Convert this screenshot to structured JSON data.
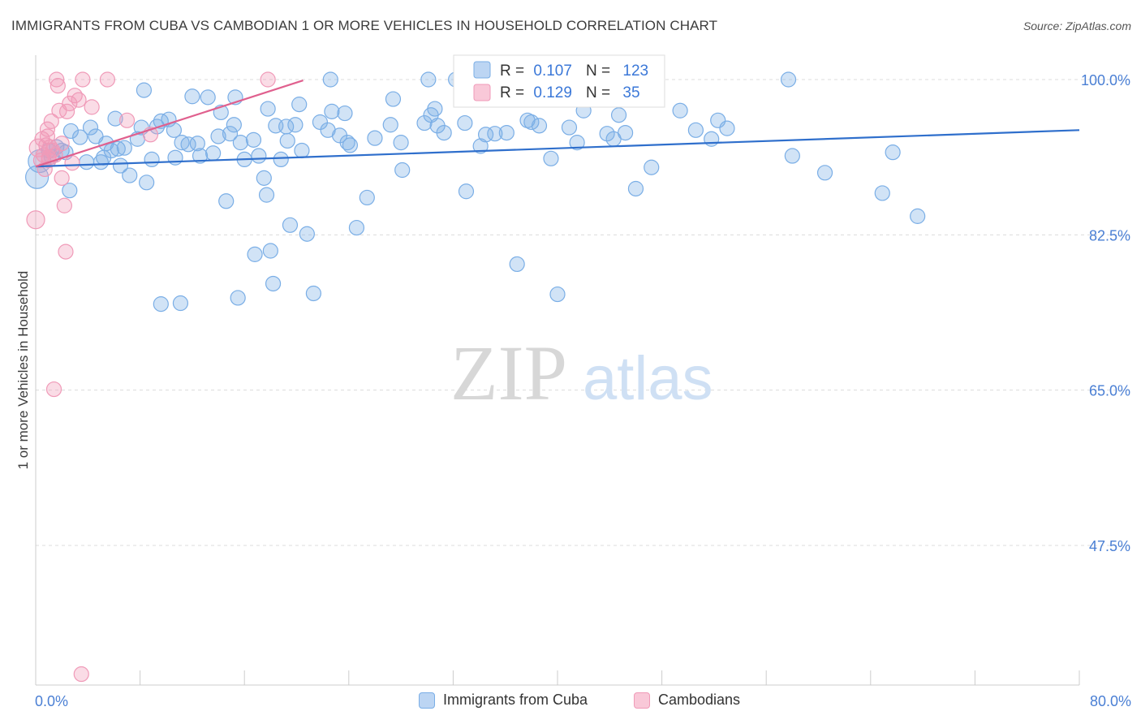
{
  "title": "IMMIGRANTS FROM CUBA VS CAMBODIAN 1 OR MORE VEHICLES IN HOUSEHOLD CORRELATION CHART",
  "source": "Source: ZipAtlas.com",
  "watermark": {
    "zip": "ZIP",
    "atlas": "atlas"
  },
  "legend_box": {
    "rows": [
      {
        "r_label": "R =",
        "r_value": "0.107",
        "n_label": "N =",
        "n_value": "123"
      },
      {
        "r_label": "R =",
        "r_value": "0.129",
        "n_label": "N =",
        "n_value": "35"
      }
    ]
  },
  "chart_data": {
    "type": "scatter",
    "title": "IMMIGRANTS FROM CUBA VS CAMBODIAN 1 OR MORE VEHICLES IN HOUSEHOLD CORRELATION CHART",
    "xlabel": "",
    "ylabel": "1 or more Vehicles in Household",
    "xlim": [
      0,
      80
    ],
    "ylim": [
      30,
      102
    ],
    "x_tick_labels": [
      "0.0%",
      "80.0%"
    ],
    "y_ticks": [
      47.5,
      65.0,
      82.5,
      100.0
    ],
    "y_tick_labels": [
      "47.5%",
      "65.0%",
      "82.5%",
      "100.0%"
    ],
    "grid": "horizontal dashed",
    "legend_position": "bottom",
    "colors": {
      "cuba": "#7aaee6",
      "cambodian": "#f09ab8",
      "cuba_line": "#2f6fcc",
      "cambodian_line": "#e0608e",
      "axis_text": "#4a7fd4"
    },
    "series": [
      {
        "name": "Immigrants from Cuba",
        "r": 0.107,
        "n": 123,
        "trend": [
          [
            0,
            90.2
          ],
          [
            80,
            94.3
          ]
        ],
        "points": [
          [
            0.1,
            89.0
          ],
          [
            0.3,
            90.8
          ],
          [
            1.0,
            92.0
          ],
          [
            1.2,
            91.3
          ],
          [
            1.6,
            92.4
          ],
          [
            2.0,
            92.0
          ],
          [
            2.3,
            91.8
          ],
          [
            2.6,
            87.5
          ],
          [
            2.7,
            94.2
          ],
          [
            3.4,
            93.5
          ],
          [
            3.9,
            90.7
          ],
          [
            4.2,
            94.6
          ],
          [
            4.6,
            93.6
          ],
          [
            5.0,
            90.7
          ],
          [
            5.2,
            91.2
          ],
          [
            5.4,
            92.8
          ],
          [
            5.8,
            92.0
          ],
          [
            6.1,
            95.6
          ],
          [
            6.3,
            92.2
          ],
          [
            6.5,
            90.3
          ],
          [
            6.8,
            92.3
          ],
          [
            7.2,
            89.2
          ],
          [
            7.8,
            93.3
          ],
          [
            8.1,
            94.6
          ],
          [
            8.3,
            98.8
          ],
          [
            8.5,
            88.4
          ],
          [
            8.9,
            91.0
          ],
          [
            9.3,
            94.7
          ],
          [
            9.6,
            95.3
          ],
          [
            10.2,
            95.5
          ],
          [
            10.6,
            94.3
          ],
          [
            10.7,
            91.2
          ],
          [
            11.2,
            92.9
          ],
          [
            11.7,
            92.7
          ],
          [
            12.0,
            98.1
          ],
          [
            12.4,
            92.8
          ],
          [
            12.6,
            91.4
          ],
          [
            13.2,
            98.0
          ],
          [
            13.6,
            91.7
          ],
          [
            14.0,
            93.6
          ],
          [
            14.2,
            96.3
          ],
          [
            14.9,
            93.9
          ],
          [
            15.2,
            94.9
          ],
          [
            15.3,
            98.0
          ],
          [
            15.7,
            92.9
          ],
          [
            16.0,
            91.0
          ],
          [
            16.7,
            93.2
          ],
          [
            17.1,
            91.4
          ],
          [
            17.5,
            88.9
          ],
          [
            17.8,
            96.7
          ],
          [
            18.4,
            94.8
          ],
          [
            18.8,
            91.0
          ],
          [
            19.2,
            94.7
          ],
          [
            19.3,
            93.1
          ],
          [
            19.9,
            94.9
          ],
          [
            20.2,
            97.2
          ],
          [
            20.4,
            92.0
          ],
          [
            21.8,
            95.2
          ],
          [
            22.4,
            94.3
          ],
          [
            22.6,
            100.0
          ],
          [
            22.7,
            96.4
          ],
          [
            23.3,
            93.7
          ],
          [
            23.7,
            96.2
          ],
          [
            23.9,
            92.9
          ],
          [
            24.1,
            92.6
          ],
          [
            26.0,
            93.4
          ],
          [
            27.2,
            94.9
          ],
          [
            27.4,
            97.8
          ],
          [
            28.0,
            92.9
          ],
          [
            28.1,
            89.8
          ],
          [
            29.8,
            95.1
          ],
          [
            30.1,
            100.0
          ],
          [
            30.3,
            96.0
          ],
          [
            30.6,
            96.7
          ],
          [
            30.8,
            94.8
          ],
          [
            31.3,
            94.0
          ],
          [
            32.2,
            100.0
          ],
          [
            32.9,
            95.1
          ],
          [
            33.4,
            97.8
          ],
          [
            34.1,
            92.5
          ],
          [
            34.5,
            93.8
          ],
          [
            35.2,
            93.9
          ],
          [
            36.1,
            94.0
          ],
          [
            37.7,
            95.4
          ],
          [
            38.0,
            95.2
          ],
          [
            38.6,
            94.8
          ],
          [
            39.5,
            91.1
          ],
          [
            40.9,
            94.6
          ],
          [
            41.5,
            92.9
          ],
          [
            42.0,
            96.5
          ],
          [
            43.8,
            93.9
          ],
          [
            44.3,
            93.3
          ],
          [
            44.7,
            96.0
          ],
          [
            45.2,
            94.0
          ],
          [
            47.2,
            90.1
          ],
          [
            49.4,
            96.5
          ],
          [
            50.6,
            94.3
          ],
          [
            51.8,
            93.3
          ],
          [
            52.3,
            95.4
          ],
          [
            53.0,
            94.5
          ],
          [
            57.7,
            100.0
          ],
          [
            58.0,
            91.4
          ],
          [
            60.5,
            89.5
          ],
          [
            64.9,
            87.2
          ],
          [
            65.7,
            91.8
          ],
          [
            67.6,
            84.6
          ],
          [
            19.5,
            83.6
          ],
          [
            20.8,
            82.6
          ],
          [
            24.6,
            83.3
          ],
          [
            16.8,
            80.3
          ],
          [
            18.0,
            80.7
          ],
          [
            36.9,
            79.2
          ],
          [
            18.2,
            77.0
          ],
          [
            9.6,
            74.7
          ],
          [
            11.1,
            74.8
          ],
          [
            15.5,
            75.4
          ],
          [
            21.3,
            75.9
          ],
          [
            40.0,
            75.8
          ],
          [
            17.7,
            87.0
          ],
          [
            14.6,
            86.3
          ],
          [
            25.4,
            86.7
          ],
          [
            33.0,
            87.4
          ],
          [
            46.0,
            87.7
          ]
        ]
      },
      {
        "name": "Cambodians",
        "r": 0.129,
        "n": 35,
        "trend": [
          [
            0,
            90.2
          ],
          [
            20.5,
            99.9
          ]
        ],
        "points": [
          [
            0.0,
            84.2
          ],
          [
            0.2,
            92.3
          ],
          [
            0.4,
            90.9
          ],
          [
            0.5,
            93.3
          ],
          [
            0.6,
            91.5
          ],
          [
            0.7,
            89.9
          ],
          [
            0.8,
            92.6
          ],
          [
            0.9,
            93.6
          ],
          [
            1.0,
            91.2
          ],
          [
            1.1,
            92.4
          ],
          [
            1.2,
            95.3
          ],
          [
            1.3,
            92.0
          ],
          [
            1.4,
            65.1
          ],
          [
            1.5,
            91.5
          ],
          [
            1.6,
            100.0
          ],
          [
            1.7,
            99.3
          ],
          [
            1.8,
            96.5
          ],
          [
            2.0,
            88.9
          ],
          [
            2.2,
            85.8
          ],
          [
            2.3,
            80.6
          ],
          [
            2.4,
            96.4
          ],
          [
            2.6,
            97.3
          ],
          [
            2.8,
            90.6
          ],
          [
            3.0,
            98.2
          ],
          [
            3.3,
            97.7
          ],
          [
            3.6,
            100.0
          ],
          [
            4.3,
            96.9
          ],
          [
            5.5,
            100.0
          ],
          [
            7.0,
            95.4
          ],
          [
            8.8,
            93.8
          ],
          [
            17.8,
            100.0
          ],
          [
            3.5,
            33.0
          ],
          [
            0.9,
            94.4
          ],
          [
            2.0,
            92.8
          ],
          [
            1.0,
            90.9
          ]
        ]
      }
    ]
  },
  "x_axis": {
    "left_label": "0.0%",
    "right_label": "80.0%"
  },
  "bottom_legend": [
    {
      "label": "Immigrants from Cuba"
    },
    {
      "label": "Cambodians"
    }
  ]
}
